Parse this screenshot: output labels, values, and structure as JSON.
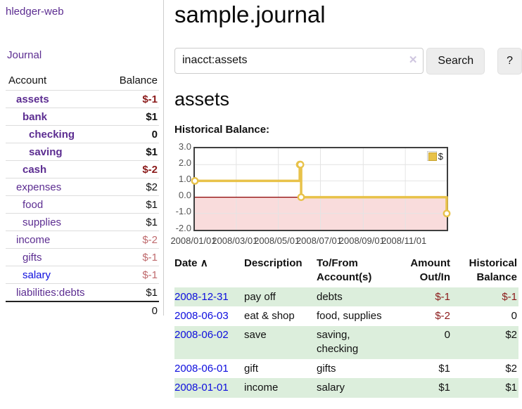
{
  "app_title": "hledger-web",
  "sidebar": {
    "journal_link": "Journal",
    "accounts_table": {
      "account_header": "Account",
      "balance_header": "Balance",
      "rows": [
        {
          "name": "assets",
          "balance": "$-1",
          "indent": 1,
          "bold": true,
          "negative": "strong"
        },
        {
          "name": "bank",
          "balance": "$1",
          "indent": 2,
          "bold": true,
          "negative": "none"
        },
        {
          "name": "checking",
          "balance": "0",
          "indent": 3,
          "bold": true,
          "negative": "none"
        },
        {
          "name": "saving",
          "balance": "$1",
          "indent": 3,
          "bold": true,
          "negative": "none"
        },
        {
          "name": "cash",
          "balance": "$-2",
          "indent": 2,
          "bold": true,
          "negative": "strong"
        },
        {
          "name": "expenses",
          "balance": "$2",
          "indent": 1,
          "bold": false,
          "negative": "none"
        },
        {
          "name": "food",
          "balance": "$1",
          "indent": 2,
          "bold": false,
          "negative": "none"
        },
        {
          "name": "supplies",
          "balance": "$1",
          "indent": 2,
          "bold": false,
          "negative": "none"
        },
        {
          "name": "income",
          "balance": "$-2",
          "indent": 1,
          "bold": false,
          "negative": "muted"
        },
        {
          "name": "gifts",
          "balance": "$-1",
          "indent": 2,
          "bold": false,
          "negative": "muted"
        },
        {
          "name": "salary",
          "balance": "$-1",
          "indent": 2,
          "bold": false,
          "negative": "muted",
          "link_color": "blue"
        },
        {
          "name": "liabilities:debts",
          "balance": "$1",
          "indent": 1,
          "bold": false,
          "negative": "none"
        }
      ],
      "total": "0"
    }
  },
  "main": {
    "title": "sample.journal",
    "search": {
      "value": "inacct:assets",
      "clear_icon_glyph": "✕",
      "search_button": "Search",
      "help_button": "?"
    },
    "account_heading": "assets",
    "chart_label": "Historical Balance:"
  },
  "chart_data": {
    "type": "line",
    "step": true,
    "title": "Historical Balance",
    "series": [
      {
        "name": "$",
        "color": "#e8c24a",
        "points": [
          [
            "2008-01-01",
            1
          ],
          [
            "2008-06-01",
            2
          ],
          [
            "2008-06-02",
            2
          ],
          [
            "2008-06-03",
            0
          ],
          [
            "2008-12-31",
            -1
          ]
        ]
      }
    ],
    "x_ticks": [
      "2008/01/01",
      "2008/03/01",
      "2008/05/01",
      "2008/07/01",
      "2008/09/01",
      "2008/11/01"
    ],
    "y_ticks": [
      "3.0",
      "2.0",
      "1.0",
      "0.0",
      "-1.0",
      "-2.0"
    ],
    "ylim": [
      -2,
      3
    ],
    "x_start": "2008-01-01",
    "x_end": "2008-12-31",
    "legend_label": "$",
    "legend_position": "top-right",
    "grid": true,
    "negative_region_fill": "#f9dcdc",
    "zero_line_color": "#8b0000"
  },
  "register": {
    "headers": {
      "date": "Date",
      "sort_icon_glyph": "∧",
      "description": "Description",
      "accounts": "To/From Account(s)",
      "amount": "Amount Out/In",
      "balance": "Historical Balance"
    },
    "rows": [
      {
        "date": "2008-12-31",
        "description": "pay off",
        "accounts": "debts",
        "amount": "$-1",
        "amount_negative": true,
        "balance": "$-1",
        "balance_negative": true,
        "shaded": true
      },
      {
        "date": "2008-06-03",
        "description": "eat & shop",
        "accounts": "food, supplies",
        "amount": "$-2",
        "amount_negative": true,
        "balance": "0",
        "balance_negative": false,
        "shaded": false
      },
      {
        "date": "2008-06-02",
        "description": "save",
        "accounts": "saving, checking",
        "amount": "0",
        "amount_negative": false,
        "balance": "$2",
        "balance_negative": false,
        "shaded": true
      },
      {
        "date": "2008-06-01",
        "description": "gift",
        "accounts": "gifts",
        "amount": "$1",
        "amount_negative": false,
        "balance": "$2",
        "balance_negative": false,
        "shaded": false
      },
      {
        "date": "2008-01-01",
        "description": "income",
        "accounts": "salary",
        "amount": "$1",
        "amount_negative": false,
        "balance": "$1",
        "balance_negative": false,
        "shaded": true
      }
    ]
  },
  "colors": {
    "link_purple": "#5c2d91",
    "link_blue": "#0d0dde",
    "negative_strong": "#8b1a1a",
    "negative_muted": "#bf6a6d",
    "row_green": "#dceedc",
    "accent_gold": "#e8c24a",
    "chart_border": "#3f3f3f",
    "gridline": "#e4e4e4"
  }
}
